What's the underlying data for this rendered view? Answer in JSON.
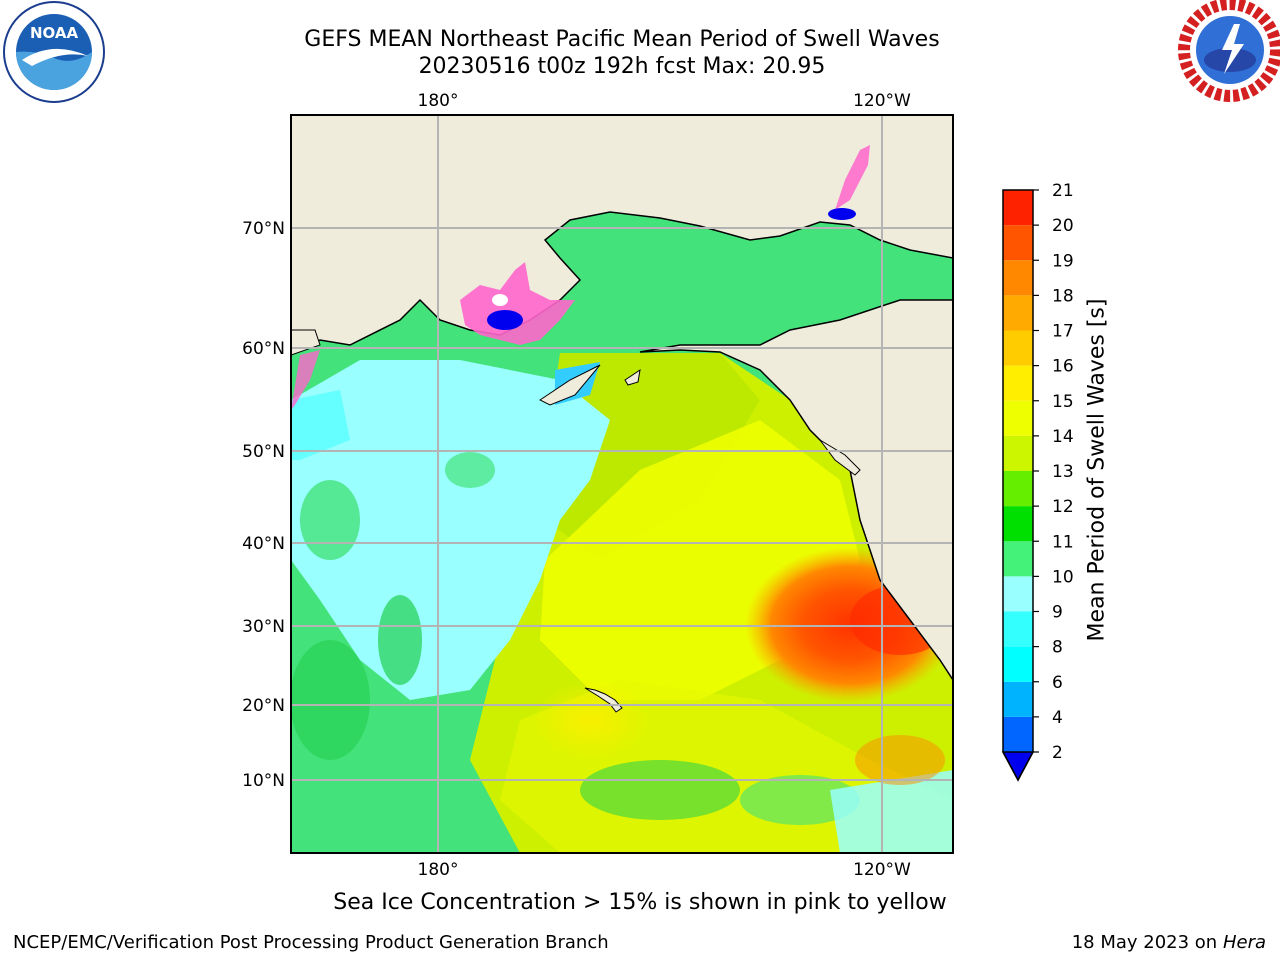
{
  "header": {
    "title_line1": "GEFS MEAN Northeast Pacific Mean Period of Swell Waves",
    "title_line2": "20230516 t00z 192h fcst   Max: 20.95"
  },
  "logos": {
    "left": "NOAA",
    "right": "NATIONAL WEATHER SERVICE"
  },
  "chart_data": {
    "type": "heatmap",
    "title": "GEFS MEAN Northeast Pacific Mean Period of Swell Waves",
    "subtitle": "20230516 t00z 192h fcst   Max: 20.95",
    "max_value": 20.95,
    "x_ticks": [
      "180°",
      "120°W"
    ],
    "y_ticks": [
      "70°N",
      "60°N",
      "50°N",
      "40°N",
      "30°N",
      "20°N",
      "10°N"
    ],
    "grid": true,
    "colorbar": {
      "label": "Mean Period of Swell Waves [s]",
      "levels": [
        2,
        4,
        6,
        8,
        9,
        10,
        11,
        12,
        13,
        14,
        15,
        16,
        17,
        18,
        19,
        20,
        21
      ],
      "tick_labels": [
        "2",
        "4",
        "6",
        "8",
        "9",
        "10",
        "11",
        "12",
        "13",
        "14",
        "15",
        "16",
        "17",
        "18",
        "19",
        "20",
        "21"
      ],
      "colors": [
        "#0066ff",
        "#00b3ff",
        "#00ffff",
        "#33ffff",
        "#99ffff",
        "#44f27a",
        "#00e000",
        "#66ee00",
        "#ccf500",
        "#eeff00",
        "#ffee00",
        "#ffcc00",
        "#ffaa00",
        "#ff8800",
        "#ff5500",
        "#ff2200"
      ],
      "under_color": "#0000ee"
    },
    "regions": [
      {
        "area": "Central North Pacific (30–55°N, west)",
        "approx_period": "8–9"
      },
      {
        "area": "Off California / Baja California",
        "approx_period": "17–20"
      },
      {
        "area": "Gulf of Alaska",
        "approx_period": "12–14"
      },
      {
        "area": "Tropical Pacific (south of 20°N)",
        "approx_period": "10–14"
      }
    ],
    "overlay": "Sea ice concentration > 15% in pink to yellow"
  },
  "footer": {
    "note": "Sea Ice Concentration > 15% is shown in pink to yellow",
    "credit_left": "NCEP/EMC/Verification Post Processing Product Generation Branch",
    "credit_right_date": "18 May 2023 on",
    "credit_right_host": "Hera"
  }
}
